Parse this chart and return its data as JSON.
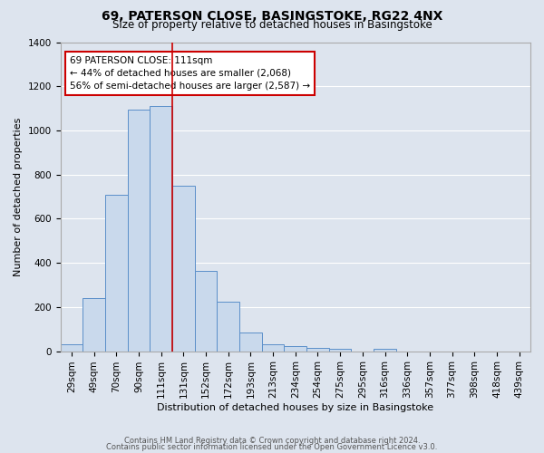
{
  "title": "69, PATERSON CLOSE, BASINGSTOKE, RG22 4NX",
  "subtitle": "Size of property relative to detached houses in Basingstoke",
  "xlabel": "Distribution of detached houses by size in Basingstoke",
  "ylabel": "Number of detached properties",
  "bar_labels": [
    "29sqm",
    "49sqm",
    "70sqm",
    "90sqm",
    "111sqm",
    "131sqm",
    "152sqm",
    "172sqm",
    "193sqm",
    "213sqm",
    "234sqm",
    "254sqm",
    "275sqm",
    "295sqm",
    "316sqm",
    "336sqm",
    "357sqm",
    "377sqm",
    "398sqm",
    "418sqm",
    "439sqm"
  ],
  "bar_values": [
    30,
    240,
    710,
    1095,
    1110,
    750,
    365,
    225,
    85,
    30,
    25,
    15,
    10,
    0,
    10,
    0,
    0,
    0,
    0,
    0,
    0
  ],
  "bar_color": "#c9d9ec",
  "bar_edge_color": "#5b8fc9",
  "property_line_x": 5,
  "property_line_color": "#cc0000",
  "ylim": [
    0,
    1400
  ],
  "yticks": [
    0,
    200,
    400,
    600,
    800,
    1000,
    1200,
    1400
  ],
  "annotation_title": "69 PATERSON CLOSE: 111sqm",
  "annotation_line1": "← 44% of detached houses are smaller (2,068)",
  "annotation_line2": "56% of semi-detached houses are larger (2,587) →",
  "annotation_box_color": "#ffffff",
  "annotation_box_edge": "#cc0000",
  "footer1": "Contains HM Land Registry data © Crown copyright and database right 2024.",
  "footer2": "Contains public sector information licensed under the Open Government Licence v3.0.",
  "background_color": "#dde4ee",
  "plot_background": "#dde4ee",
  "grid_color": "#ffffff",
  "title_fontsize": 10,
  "subtitle_fontsize": 8.5,
  "xlabel_fontsize": 8,
  "ylabel_fontsize": 8,
  "tick_fontsize": 7.5,
  "footer_fontsize": 6
}
